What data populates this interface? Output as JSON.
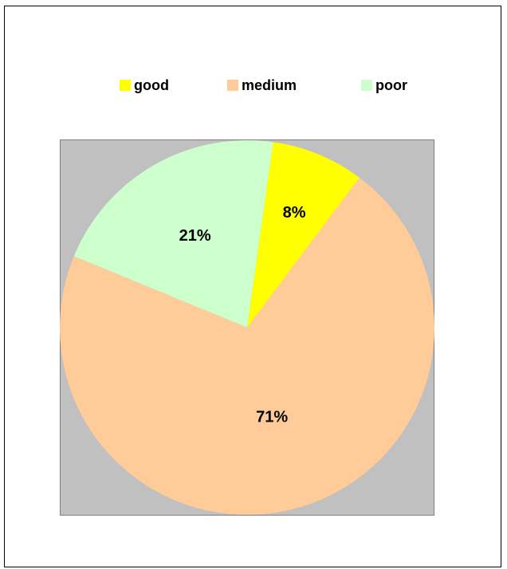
{
  "chart_data": {
    "type": "pie",
    "legend_placement": "top",
    "categories": [
      "good",
      "medium",
      "poor"
    ],
    "values": [
      8,
      71,
      21
    ],
    "labels": [
      "8%",
      "71%",
      "21%"
    ],
    "colors": [
      "#ffff00",
      "#ffcc99",
      "#ccffcc"
    ],
    "plot_background": "#c0c0c0",
    "start_angle_deg": 82,
    "direction": "counterclockwise"
  }
}
